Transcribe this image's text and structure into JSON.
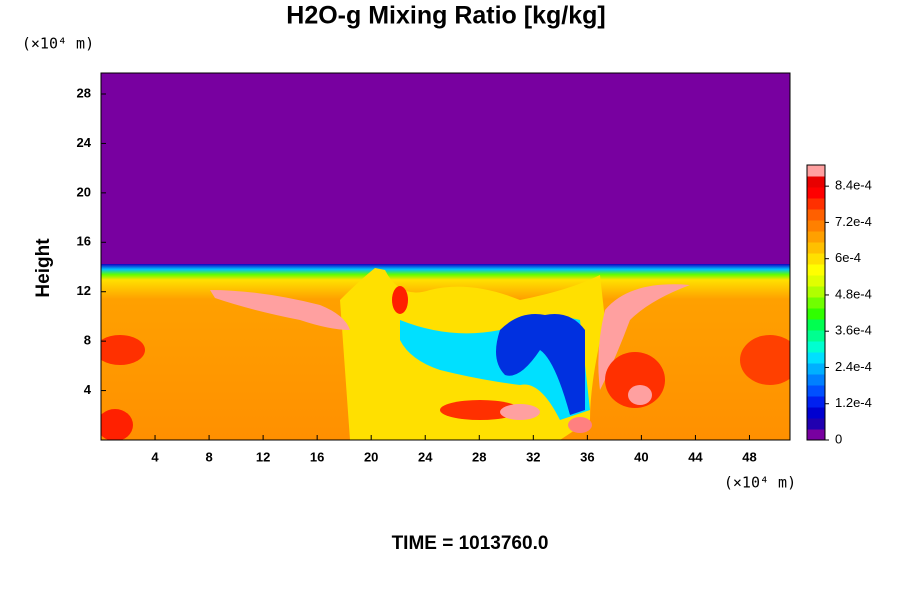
{
  "chart_data": {
    "type": "heatmap",
    "title": "H2O-g Mixing Ratio [kg/kg]",
    "y_unit": "(×10⁴ m)",
    "ylabel": "Height",
    "x_unit": "(×10⁴ m)",
    "footer": "TIME = 1013760.0",
    "xlim": [
      0,
      51
    ],
    "xticks": [
      4,
      8,
      12,
      16,
      20,
      24,
      28,
      32,
      36,
      40,
      44,
      48
    ],
    "ylim": [
      0,
      29.7
    ],
    "yticks": [
      4,
      8,
      12,
      16,
      20,
      24,
      28
    ],
    "colorbar": {
      "lim": [
        0,
        0.00091
      ],
      "ticks": [
        0,
        {
          "value": 0.00012,
          "label": "1.2e-4"
        },
        {
          "value": 0.00024,
          "label": "2.4e-4"
        },
        {
          "value": 0.00036,
          "label": "3.6e-4"
        },
        {
          "value": 0.00048,
          "label": "4.8e-4"
        },
        {
          "value": 0.0006,
          "label": "6e-4"
        },
        {
          "value": 0.00072,
          "label": "7.2e-4"
        },
        {
          "value": 0.00084,
          "label": "8.4e-4"
        }
      ],
      "colors": [
        "#7800a0",
        "#2000b0",
        "#0000d0",
        "#0020f0",
        "#0050ff",
        "#0080ff",
        "#00b0ff",
        "#00e0ff",
        "#00ffd0",
        "#00ff90",
        "#00ff50",
        "#30ff00",
        "#70ff00",
        "#b0ff00",
        "#e0ff00",
        "#ffff00",
        "#ffe000",
        "#ffc000",
        "#ffa000",
        "#ff8000",
        "#ff6000",
        "#ff3000",
        "#ff0000",
        "#e80000",
        "#ffa0a0"
      ]
    }
  }
}
